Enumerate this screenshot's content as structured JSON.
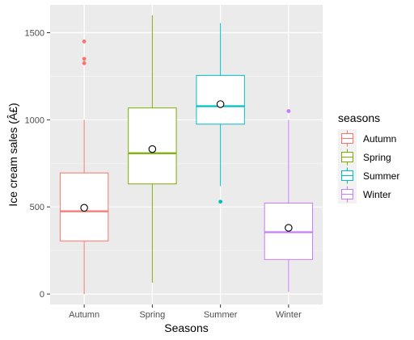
{
  "chart_data": {
    "type": "boxplot",
    "xlabel": "Seasons",
    "ylabel": "Ice cream sales (Â£)",
    "ylim": [
      -60,
      1660
    ],
    "yticks": [
      0,
      500,
      1000,
      1500
    ],
    "grid": true,
    "legend": {
      "title": "seasons",
      "position": "right",
      "entries": [
        "Autumn",
        "Spring",
        "Summer",
        "Winter"
      ]
    },
    "categories": [
      "Autumn",
      "Spring",
      "Summer",
      "Winter"
    ],
    "series": [
      {
        "category": "Autumn",
        "color": "#F8766D",
        "whisker_low": 0,
        "q1": 305,
        "median": 475,
        "q3": 695,
        "whisker_high": 1000,
        "mean": 495,
        "outliers": [
          1450,
          1350,
          1325
        ]
      },
      {
        "category": "Spring",
        "color": "#7CAE00",
        "whisker_low": 65,
        "q1": 632,
        "median": 808,
        "q3": 1068,
        "whisker_high": 1600,
        "mean": 832,
        "outliers": []
      },
      {
        "category": "Summer",
        "color": "#00BFC4",
        "whisker_low": 620,
        "q1": 975,
        "median": 1078,
        "q3": 1255,
        "whisker_high": 1555,
        "mean": 1090,
        "outliers": [
          530
        ]
      },
      {
        "category": "Winter",
        "color": "#C77CFF",
        "whisker_low": 12,
        "q1": 198,
        "median": 355,
        "q3": 522,
        "whisker_high": 1000,
        "mean": 380,
        "outliers": [
          1050
        ]
      }
    ]
  }
}
